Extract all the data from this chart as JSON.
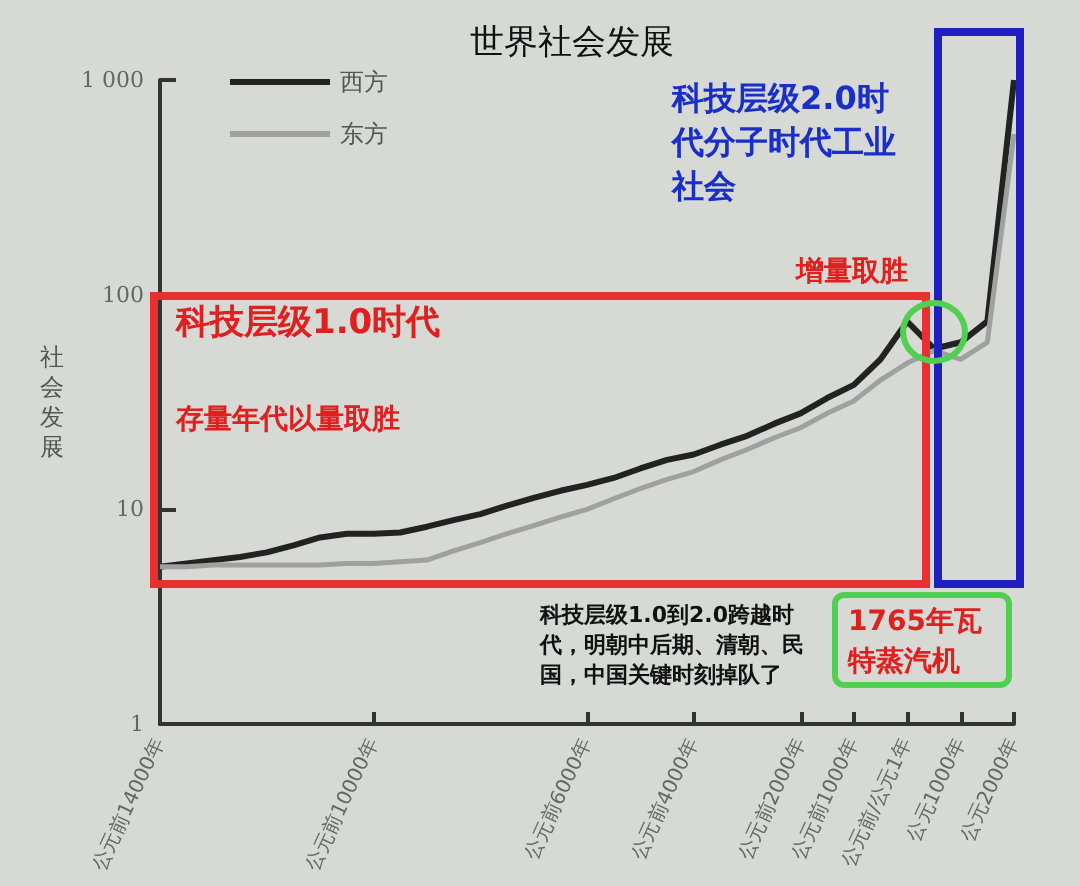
{
  "chart_data": {
    "type": "line",
    "title": "世界社会发展",
    "ylabel": "社会发展",
    "log": "y",
    "grid": false,
    "legend": "top left",
    "marker": "none",
    "line_style": "solid",
    "categories": [
      "公元前14000年",
      null,
      null,
      null,
      null,
      null,
      null,
      null,
      "公元前10000年",
      null,
      null,
      null,
      null,
      null,
      null,
      null,
      "公元前6000年",
      null,
      null,
      null,
      "公元前4000年",
      null,
      null,
      null,
      "公元前2000年",
      null,
      "公元前1000年",
      null,
      "公元前/公元1年",
      null,
      "公元1000年",
      null,
      "公元2000年"
    ],
    "ylim": [
      1,
      1000
    ],
    "yticks": [
      1,
      10,
      100,
      {
        "value": 1000,
        "label": "1 000"
      }
    ],
    "series": [
      {
        "name": "西方",
        "color": "#222222",
        "values": [
          5.4,
          5.6,
          5.8,
          6.0,
          6.3,
          6.8,
          7.4,
          7.7,
          7.7,
          7.8,
          8.3,
          8.9,
          9.5,
          10.4,
          11.3,
          12.2,
          13,
          14,
          15.5,
          17,
          18,
          20,
          22,
          25,
          28,
          33,
          38,
          50,
          75,
          56,
          60,
          75,
          1000
        ]
      },
      {
        "name": "东方",
        "color": "#a0a0a0",
        "values": [
          5.4,
          5.4,
          5.5,
          5.5,
          5.5,
          5.5,
          5.5,
          5.6,
          5.6,
          5.7,
          5.8,
          6.4,
          7,
          7.7,
          8.4,
          9.2,
          10,
          11.2,
          12.5,
          13.8,
          15,
          17,
          19,
          21.5,
          24,
          28,
          32,
          40,
          48,
          55,
          50,
          60,
          560
        ]
      }
    ],
    "annotations": [
      "科技层级1.0时代",
      "存量年代以量取胜",
      "增量取胜",
      "科技层级2.0时代分子时代工业社会",
      "科技层级1.0到2.0跨越时代，明朝中后期、清朝、民国，中国关键时刻掉队了",
      "1765年瓦特蒸汽机"
    ]
  }
}
